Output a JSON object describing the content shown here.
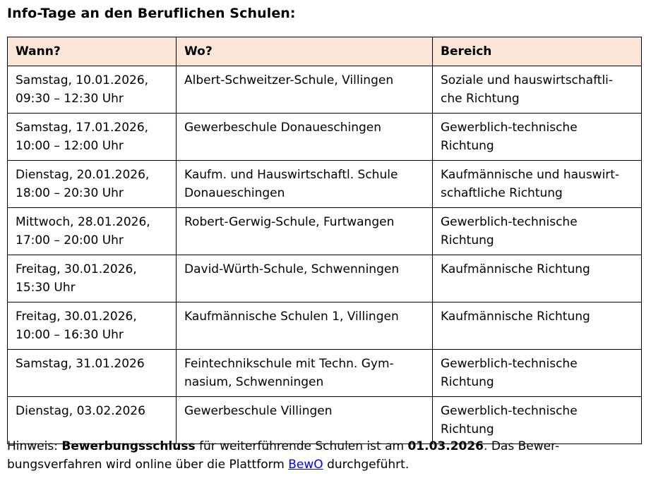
{
  "page": {
    "title": "Info-Tage an den Beruflichen Schulen:"
  },
  "colors": {
    "header_background": "#fbe5d6",
    "border": "#000000",
    "link": "#0000ff",
    "text": "#000000"
  },
  "table": {
    "headers": [
      "Wann?",
      "Wo?",
      "Bereich"
    ],
    "rows": [
      {
        "wann": [
          "Samstag, 10.01.2026,",
          "09:30 – 12:30 Uhr"
        ],
        "wo": [
          "Albert-Schweitzer-Schule, Villingen"
        ],
        "bereich": [
          "Soziale und hauswirtschaftli-",
          "che Richtung"
        ]
      },
      {
        "wann": [
          "Samstag, 17.01.2026,",
          "10:00 – 12:00 Uhr"
        ],
        "wo": [
          "Gewerbeschule Donaueschingen"
        ],
        "bereich": [
          "Gewerblich-technische",
          "Richtung"
        ]
      },
      {
        "wann": [
          "Dienstag, 20.01.2026,",
          "18:00 – 20:30 Uhr"
        ],
        "wo": [
          "Kaufm. und Hauswirtschaftl. Schule",
          "Donaueschingen"
        ],
        "bereich": [
          "Kaufmännische und hauswirt-",
          "schaftliche Richtung"
        ]
      },
      {
        "wann": [
          "Mittwoch, 28.01.2026,",
          "17:00 – 20:00 Uhr"
        ],
        "wo": [
          "Robert-Gerwig-Schule, Furtwangen"
        ],
        "bereich": [
          "Gewerblich-technische",
          "Richtung"
        ]
      },
      {
        "wann": [
          "Freitag, 30.01.2026,",
          "15:30 Uhr"
        ],
        "wo": [
          "David-Würth-Schule, Schwenningen"
        ],
        "bereich": [
          "Kaufmännische Richtung"
        ]
      },
      {
        "wann": [
          "Freitag, 30.01.2026,",
          "10:00 – 16:30 Uhr"
        ],
        "wo": [
          "Kaufmännische Schulen 1, Villingen"
        ],
        "bereich": [
          "Kaufmännische Richtung"
        ]
      },
      {
        "wann": [
          "Samstag, 31.01.2026"
        ],
        "wo": [
          "Feintechnikschule mit Techn. Gym-",
          "nasium, Schwenningen"
        ],
        "bereich": [
          "Gewerblich-technische",
          "Richtung"
        ]
      },
      {
        "wann": [
          "Dienstag, 03.02.2026"
        ],
        "wo": [
          "Gewerbeschule Villingen"
        ],
        "bereich": [
          "Gewerblich-technische",
          "Richtung"
        ]
      }
    ]
  },
  "note": {
    "line1": {
      "prefix": "Hinweis: ",
      "bold1": "Bewerbungsschluss",
      "mid": " für weiterführende Schulen ist am ",
      "bold2": "01.03.2026",
      "suffix": ". Das Bewer-"
    },
    "line2": {
      "prefix": "bungsverfahren wird online über die Plattform ",
      "link_label": "BewO",
      "suffix": " durchgeführt."
    }
  }
}
